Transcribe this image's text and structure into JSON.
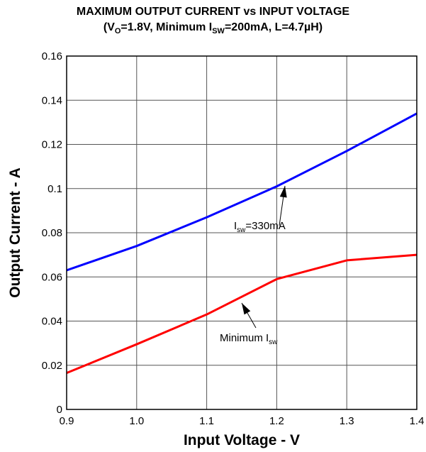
{
  "chart_data": {
    "type": "line",
    "title_line1": "MAXIMUM OUTPUT CURRENT vs INPUT VOLTAGE",
    "title_line2": {
      "open": "(V",
      "sub1": "O",
      "mid1": "=1.8V, Minimum I",
      "sub2": "SW",
      "mid2": "=200mA, L=4.7µH)"
    },
    "xlabel": "Input Voltage - V",
    "ylabel": "Output Current - A",
    "xlim": [
      0.9,
      1.4
    ],
    "ylim": [
      0,
      0.16
    ],
    "x_ticks": [
      "0.9",
      "1.0",
      "1.1",
      "1.2",
      "1.3",
      "1.4"
    ],
    "y_ticks": [
      "0",
      "0.02",
      "0.04",
      "0.06",
      "0.08",
      "0.1",
      "0.12",
      "0.14",
      "0.16"
    ],
    "grid": true,
    "series": [
      {
        "label_main": "I",
        "label_sub": "sw",
        "label_tail": "=330mA",
        "color": "#0000ff",
        "x": [
          0.9,
          1.0,
          1.1,
          1.2,
          1.3,
          1.4
        ],
        "y": [
          0.063,
          0.074,
          0.087,
          0.101,
          0.117,
          0.134
        ]
      },
      {
        "label_main": "Minimum I",
        "label_sub": "sw",
        "label_tail": "",
        "color": "#ff0000",
        "x": [
          0.9,
          1.0,
          1.1,
          1.2,
          1.3,
          1.4
        ],
        "y": [
          0.0165,
          0.0295,
          0.043,
          0.059,
          0.0675,
          0.07
        ]
      }
    ]
  }
}
